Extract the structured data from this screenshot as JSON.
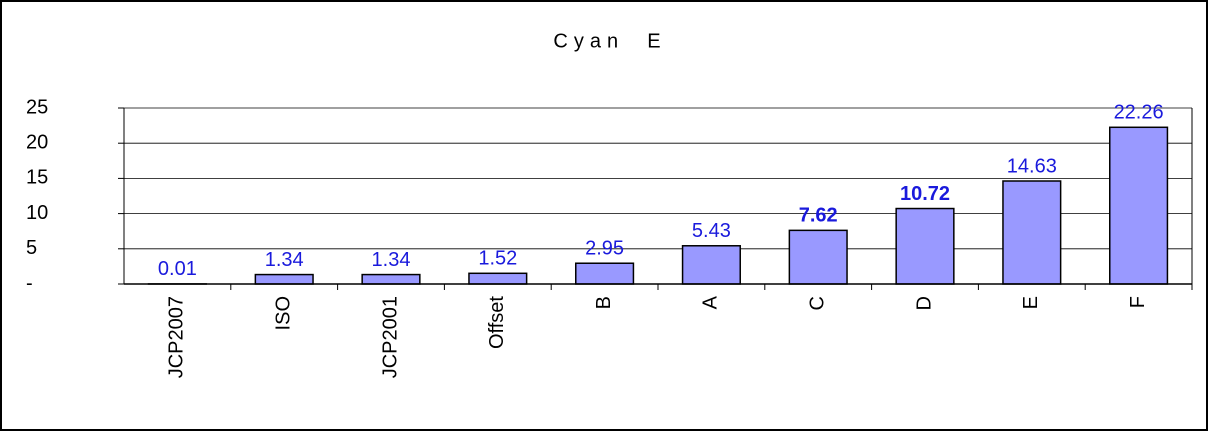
{
  "chart_data": {
    "type": "bar",
    "title": "Cyan  E",
    "categories": [
      "JCP2007",
      "ISO",
      "JCP2001",
      "Offset",
      "B",
      "A",
      "C",
      "D",
      "E",
      "F"
    ],
    "values": [
      0.01,
      1.34,
      1.34,
      1.52,
      2.95,
      5.43,
      7.62,
      10.72,
      14.63,
      22.26
    ],
    "value_label_bold": [
      false,
      false,
      false,
      false,
      false,
      false,
      true,
      true,
      false,
      false
    ],
    "color": "#9999ff",
    "label_color": "#1a1adc",
    "ylim": [
      0,
      25
    ],
    "yticks": [
      {
        "value": 0,
        "label": "-"
      },
      5,
      10,
      15,
      20,
      25
    ],
    "grid": true
  }
}
